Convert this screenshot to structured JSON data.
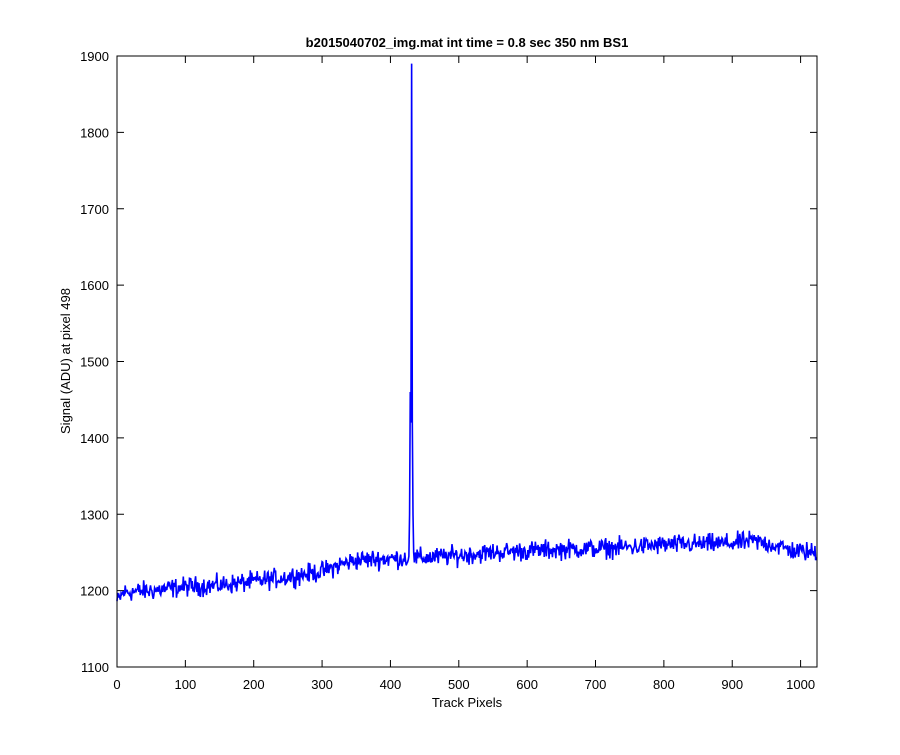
{
  "chart_data": {
    "type": "line",
    "title": "b2015040702_img.mat int time = 0.8 sec  350 nm BS1",
    "xlabel": "Track Pixels",
    "ylabel": "Signal (ADU) at pixel 498",
    "xlim": [
      0,
      1024
    ],
    "ylim": [
      1100,
      1900
    ],
    "xticks": [
      0,
      100,
      200,
      300,
      400,
      500,
      600,
      700,
      800,
      900,
      1000
    ],
    "yticks": [
      1100,
      1200,
      1300,
      1400,
      1500,
      1600,
      1700,
      1800,
      1900
    ],
    "grid": false,
    "legend": "none",
    "series": [
      {
        "color": "#0000ff",
        "x_range": [
          0,
          1023
        ],
        "baseline_points": [
          [
            0,
            1185
          ],
          [
            10,
            1198
          ],
          [
            50,
            1200
          ],
          [
            100,
            1205
          ],
          [
            150,
            1207
          ],
          [
            200,
            1212
          ],
          [
            250,
            1218
          ],
          [
            300,
            1225
          ],
          [
            330,
            1235
          ],
          [
            350,
            1240
          ],
          [
            400,
            1242
          ],
          [
            450,
            1243
          ],
          [
            500,
            1246
          ],
          [
            550,
            1250
          ],
          [
            600,
            1252
          ],
          [
            650,
            1254
          ],
          [
            700,
            1255
          ],
          [
            750,
            1257
          ],
          [
            800,
            1260
          ],
          [
            850,
            1261
          ],
          [
            900,
            1262
          ],
          [
            930,
            1265
          ],
          [
            960,
            1260
          ],
          [
            990,
            1252
          ],
          [
            1023,
            1250
          ]
        ],
        "noise_amplitude": 9,
        "spike_points": [
          [
            427,
            1245
          ],
          [
            428,
            1300
          ],
          [
            429,
            1460
          ],
          [
            430,
            1420
          ],
          [
            431,
            1890
          ],
          [
            432,
            1420
          ],
          [
            433,
            1300
          ],
          [
            434,
            1250
          ]
        ]
      }
    ]
  }
}
